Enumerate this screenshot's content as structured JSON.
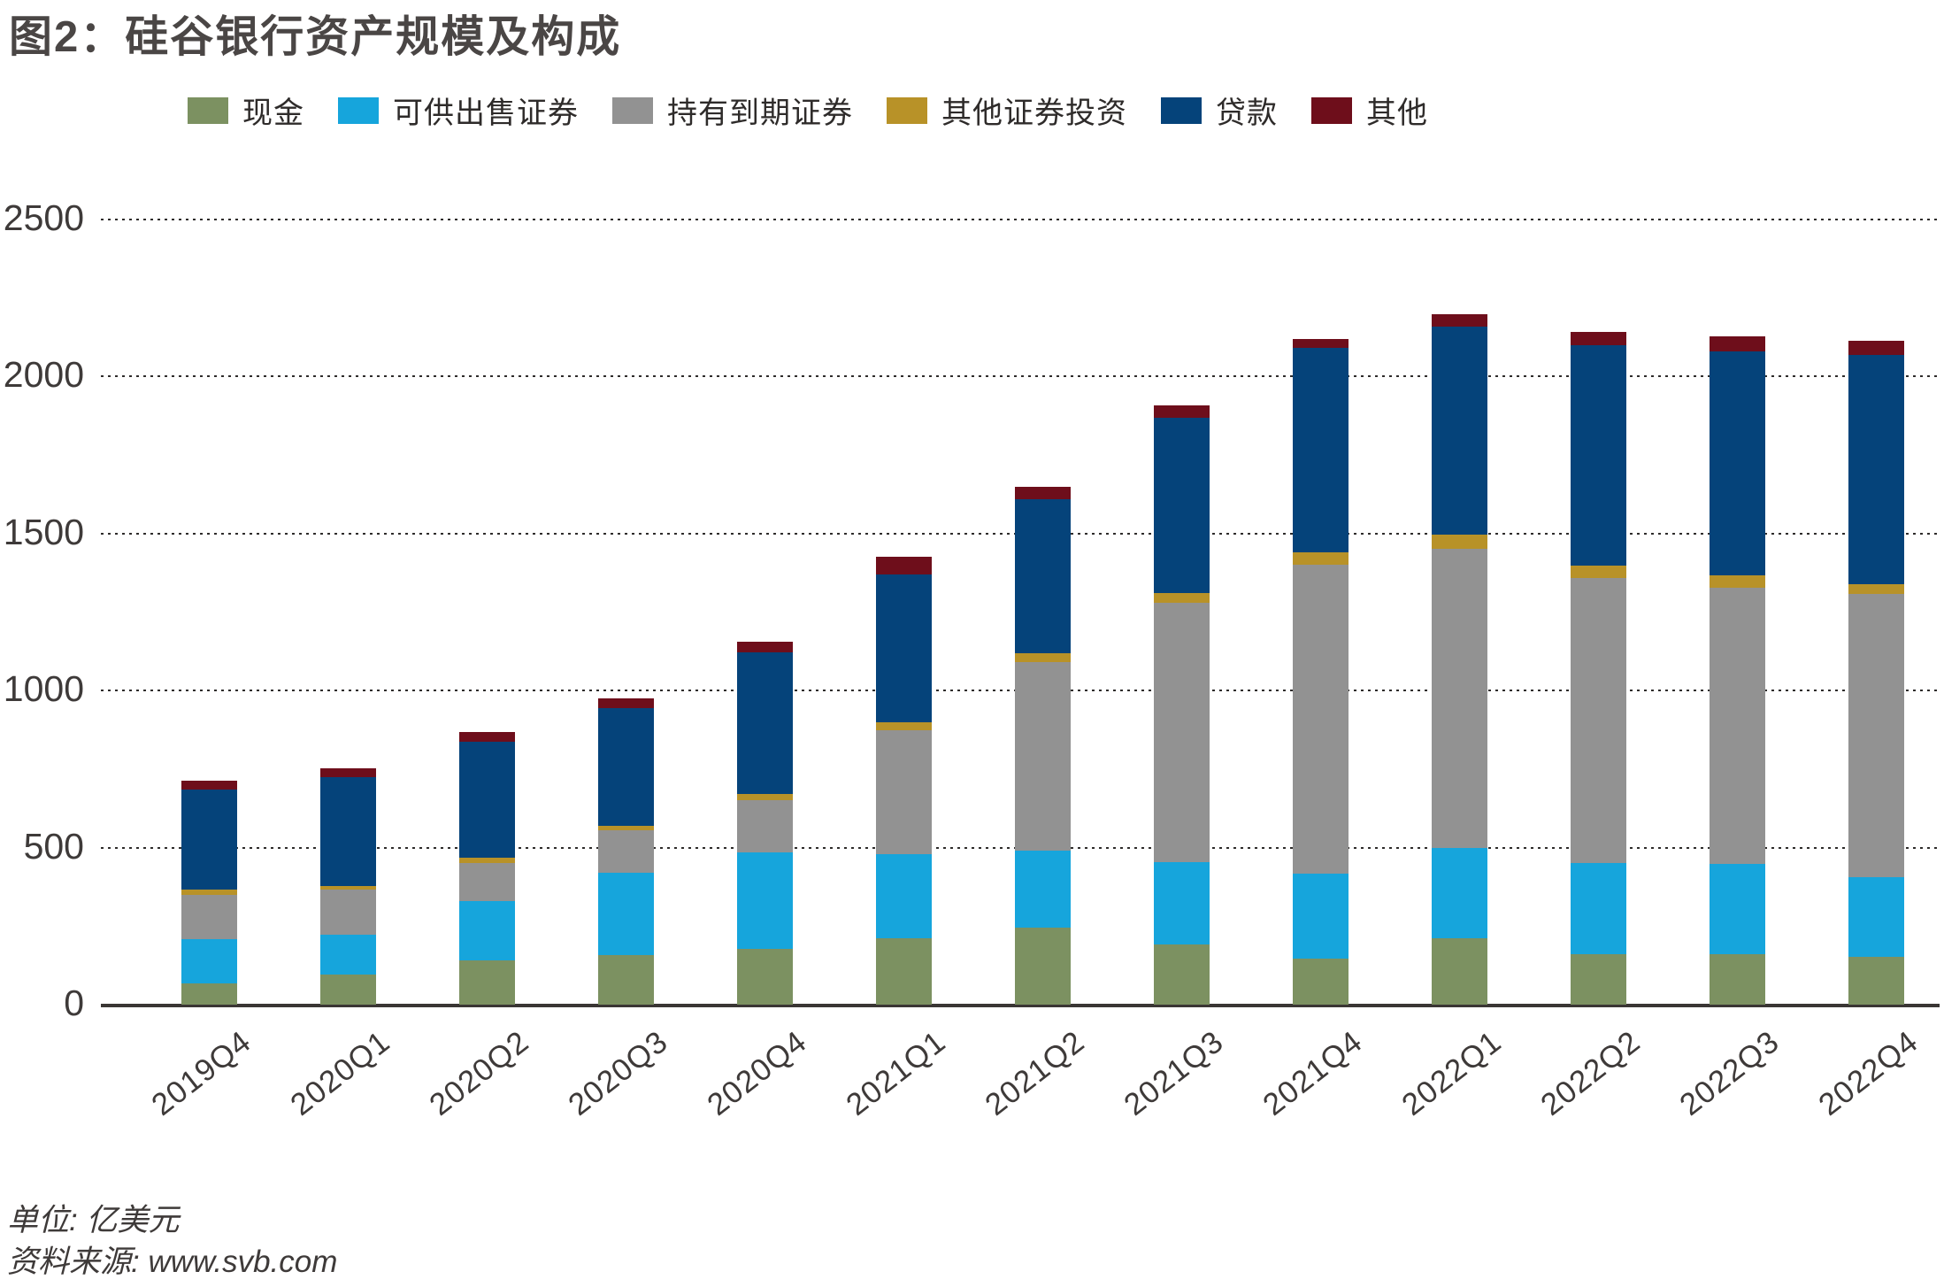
{
  "title": "图2：硅谷银行资产规模及构成",
  "footer": {
    "unit_label": "单位: 亿美元",
    "source_label": "资料来源: www.svb.com"
  },
  "chart_data": {
    "type": "bar",
    "stacked": true,
    "title": "图2：硅谷银行资产规模及构成",
    "unit": "亿美元",
    "legend_position": "top",
    "grid": "dotted-horizontal",
    "categories": [
      "2019Q4",
      "2020Q1",
      "2020Q2",
      "2020Q3",
      "2020Q4",
      "2021Q1",
      "2021Q2",
      "2021Q3",
      "2021Q4",
      "2022Q1",
      "2022Q2",
      "2022Q3",
      "2022Q4"
    ],
    "y_axis": {
      "min": 0,
      "max": 2500,
      "step": 500,
      "ticks": [
        0,
        500,
        1000,
        1500,
        2000,
        2500
      ]
    },
    "series": [
      {
        "key": "cash",
        "label": "现金",
        "color": "#7c9161",
        "values": [
          68,
          96,
          140,
          158,
          177,
          210,
          245,
          192,
          146,
          210,
          161,
          160,
          152
        ]
      },
      {
        "key": "available-for-sale",
        "label": "可供出售证券",
        "color": "#16a5dc",
        "values": [
          140,
          127,
          190,
          262,
          309,
          269,
          246,
          262,
          272,
          290,
          289,
          288,
          255
        ]
      },
      {
        "key": "held-to-maturity",
        "label": "持有到期证券",
        "color": "#929292",
        "values": [
          141,
          143,
          120,
          134,
          166,
          396,
          600,
          826,
          982,
          951,
          908,
          879,
          900
        ]
      },
      {
        "key": "other-securities",
        "label": "其他证券投资",
        "color": "#b89228",
        "values": [
          17,
          12,
          17,
          16,
          20,
          25,
          28,
          30,
          40,
          45,
          40,
          40,
          32
        ]
      },
      {
        "key": "loans",
        "label": "贷款",
        "color": "#05437a",
        "values": [
          320,
          345,
          370,
          374,
          450,
          470,
          491,
          559,
          650,
          662,
          703,
          714,
          729
        ]
      },
      {
        "key": "other",
        "label": "其他",
        "color": "#6e0e1b",
        "values": [
          28,
          30,
          30,
          31,
          33,
          55,
          40,
          40,
          30,
          40,
          42,
          46,
          47
        ]
      }
    ],
    "totals": [
      714,
      753,
      867,
      975,
      1155,
      1425,
      1650,
      1909,
      2120,
      2198,
      2143,
      2127,
      2115
    ]
  }
}
